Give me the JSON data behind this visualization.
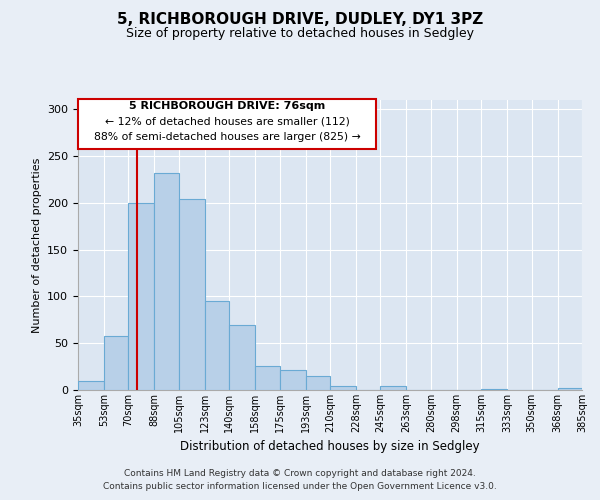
{
  "title": "5, RICHBOROUGH DRIVE, DUDLEY, DY1 3PZ",
  "subtitle": "Size of property relative to detached houses in Sedgley",
  "xlabel": "Distribution of detached houses by size in Sedgley",
  "ylabel": "Number of detached properties",
  "bar_color": "#b8d0e8",
  "bar_edge_color": "#6aaad4",
  "background_color": "#e8eef6",
  "plot_bg_color": "#dce6f2",
  "grid_color": "#ffffff",
  "annotation_box_edge": "#cc0000",
  "vline_color": "#cc0000",
  "annotation_text_line1": "5 RICHBOROUGH DRIVE: 76sqm",
  "annotation_text_line2": "← 12% of detached houses are smaller (112)",
  "annotation_text_line3": "88% of semi-detached houses are larger (825) →",
  "vline_x": 76,
  "bin_edges": [
    35,
    53,
    70,
    88,
    105,
    123,
    140,
    158,
    175,
    193,
    210,
    228,
    245,
    263,
    280,
    298,
    315,
    333,
    350,
    368,
    385
  ],
  "values": [
    10,
    58,
    200,
    232,
    204,
    95,
    70,
    26,
    21,
    15,
    4,
    0,
    4,
    0,
    0,
    0,
    1,
    0,
    0,
    2
  ],
  "tick_labels": [
    "35sqm",
    "53sqm",
    "70sqm",
    "88sqm",
    "105sqm",
    "123sqm",
    "140sqm",
    "158sqm",
    "175sqm",
    "193sqm",
    "210sqm",
    "228sqm",
    "245sqm",
    "263sqm",
    "280sqm",
    "298sqm",
    "315sqm",
    "333sqm",
    "350sqm",
    "368sqm",
    "385sqm"
  ],
  "ylim": [
    0,
    310
  ],
  "yticks": [
    0,
    50,
    100,
    150,
    200,
    250,
    300
  ],
  "footer1": "Contains HM Land Registry data © Crown copyright and database right 2024.",
  "footer2": "Contains public sector information licensed under the Open Government Licence v3.0."
}
